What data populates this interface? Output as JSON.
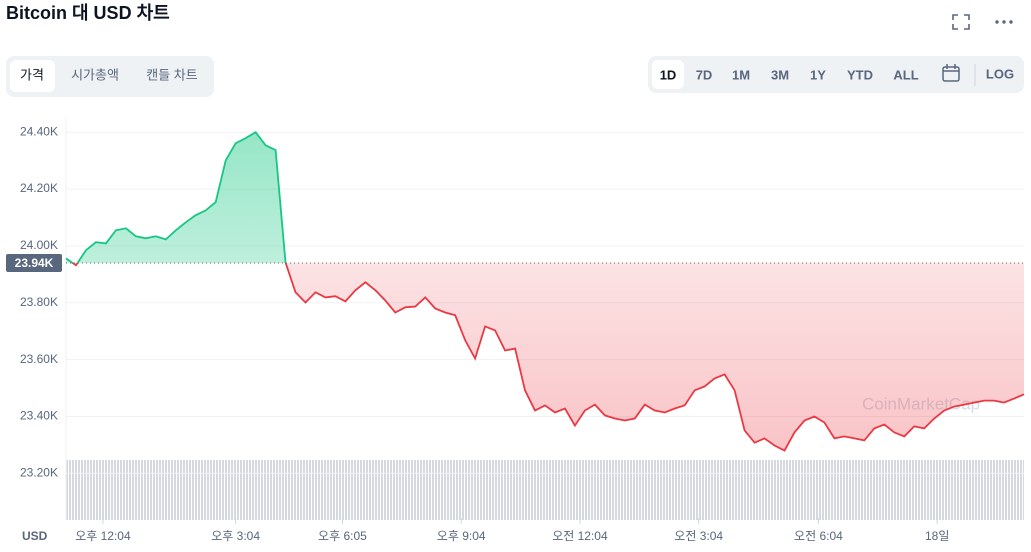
{
  "header": {
    "title": "Bitcoin 대 USD 차트",
    "tabs": [
      "가격",
      "시가총액",
      "캔들 차트"
    ],
    "ranges": [
      "1D",
      "7D",
      "1M",
      "3M",
      "1Y",
      "YTD",
      "ALL"
    ],
    "log": "LOG"
  },
  "chart_data": {
    "type": "line",
    "currency": "USD",
    "colors": {
      "up": "#16c784",
      "down": "#ea3943"
    },
    "baseline": {
      "value": 23940,
      "label": "23.94K"
    },
    "values": [
      23956,
      23932,
      23985,
      24013,
      24009,
      24055,
      24062,
      24034,
      24027,
      24034,
      24023,
      24055,
      24083,
      24108,
      24125,
      24154,
      24301,
      24361,
      24379,
      24400,
      24354,
      24337,
      23942,
      23837,
      23801,
      23837,
      23819,
      23823,
      23805,
      23844,
      23872,
      23844,
      23808,
      23766,
      23784,
      23787,
      23819,
      23780,
      23766,
      23756,
      23668,
      23604,
      23717,
      23703,
      23632,
      23639,
      23492,
      23421,
      23439,
      23414,
      23428,
      23368,
      23421,
      23442,
      23404,
      23393,
      23386,
      23393,
      23442,
      23421,
      23414,
      23428,
      23439,
      23492,
      23506,
      23534,
      23548,
      23492,
      23351,
      23308,
      23323,
      23298,
      23280,
      23344,
      23386,
      23400,
      23379,
      23323,
      23330,
      23323,
      23316,
      23358,
      23372,
      23344,
      23330,
      23365,
      23358,
      23393,
      23421,
      23435,
      23442,
      23449,
      23456,
      23456,
      23449,
      23463,
      23478
    ],
    "xlim": [
      0,
      96
    ],
    "xticks": [
      {
        "value": 3.7,
        "label": "오후 12:04"
      },
      {
        "value": 17,
        "label": "오후 3:04"
      },
      {
        "value": 27.7,
        "label": "오후 6:05"
      },
      {
        "value": 39.6,
        "label": "오후 9:04"
      },
      {
        "value": 51.5,
        "label": "오전 12:04"
      },
      {
        "value": 63.4,
        "label": "오전 3:04"
      },
      {
        "value": 75.4,
        "label": "오전 6:04"
      },
      {
        "value": 87.3,
        "label": "18일"
      }
    ],
    "ylim": [
      23050,
      24450
    ],
    "yticks": [
      {
        "value": 23200,
        "label": "23.20K"
      },
      {
        "value": 23400,
        "label": "23.40K"
      },
      {
        "value": 23600,
        "label": "23.60K"
      },
      {
        "value": 23800,
        "label": "23.80K"
      },
      {
        "value": 24000,
        "label": "24.00K"
      },
      {
        "value": 24200,
        "label": "24.20K"
      },
      {
        "value": 24400,
        "label": "24.40K"
      }
    ]
  }
}
